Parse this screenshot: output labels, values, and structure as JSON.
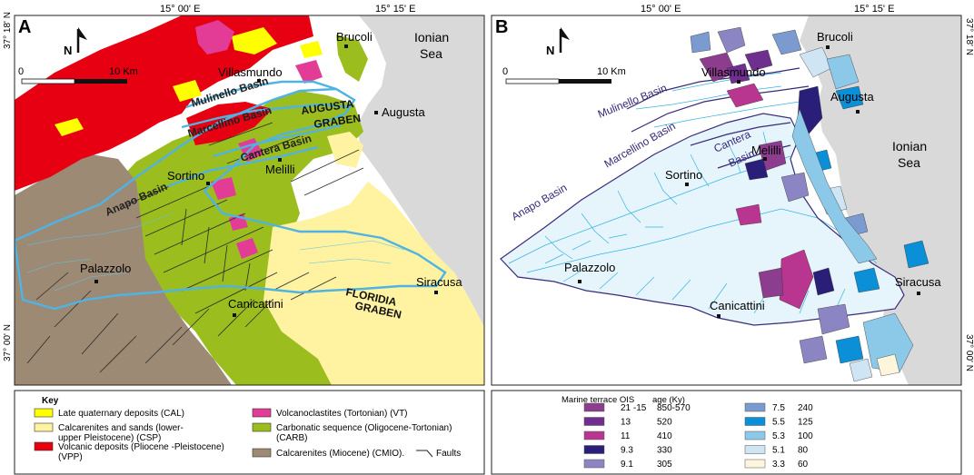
{
  "panel_a": {
    "letter": "A",
    "coord_top_left": "15° 00' E",
    "coord_top_right": "15° 15' E",
    "coord_left_top": "37° 18' N",
    "coord_left_bottom": "37° 00' N",
    "north": "N",
    "scale_zero": "0",
    "scale_ten": "10 Km",
    "sea": [
      "Ionian",
      "Sea"
    ],
    "towns": {
      "brucoli": "Brucoli",
      "villasmundo": "Villasmundo",
      "augusta": "Augusta",
      "melilli": "Melilli",
      "sortino": "Sortino",
      "palazzolo": "Palazzolo",
      "canicattini": "Canicattini",
      "siracusa": "Siracusa"
    },
    "basins": {
      "mulinello": "Mulinello Basin",
      "marcellino": "Marcellino Basin",
      "cantera": "Cantera Basin",
      "anapo": "Anapo Basin"
    },
    "grabens": {
      "augusta": [
        "AUGUSTA",
        "GRABEN"
      ],
      "floridia": [
        "FLORIDIA",
        "GRABEN"
      ]
    }
  },
  "panel_b": {
    "letter": "B",
    "coord_top_left": "15° 00' E",
    "coord_top_right": "15° 15' E",
    "coord_right_top": "37° 18' N",
    "coord_right_bottom": "37° 00' N",
    "north": "N",
    "scale_zero": "0",
    "scale_ten": "10 Km",
    "sea": [
      "Ionian",
      "Sea"
    ],
    "towns": {
      "brucoli": "Brucoli",
      "villasmundo": "Villasmundo",
      "augusta": "Augusta",
      "melilli": "Melilli",
      "sortino": "Sortino",
      "palazzolo": "Palazzolo",
      "canicattini": "Canicattini",
      "siracusa": "Siracusa"
    },
    "basins": {
      "mulinello": "Mulinello Basin",
      "marcellino": "Marcellino Basin",
      "cantera": [
        "Cantera",
        "Basin"
      ],
      "anapo": "Anapo Basin"
    }
  },
  "key": {
    "title": "Key",
    "items": [
      {
        "label": [
          "Late quaternary deposits (CAL)"
        ],
        "color": "#ffff00"
      },
      {
        "label": [
          "Calcarenites and sands (lower-",
          "upper Pleistocene) (CSP)"
        ],
        "color": "#fff2a0"
      },
      {
        "label": [
          "Volcanic deposits (Pliocene -Pleistocene)",
          "(VPP)"
        ],
        "color": "#e60012"
      },
      {
        "label": [
          "Volcanoclastites (Tortonian) (VT)"
        ],
        "color": "#e23c96"
      },
      {
        "label": [
          "Carbonatic sequence (Oligocene-Tortonian)",
          "(CARB)"
        ],
        "color": "#9cbd1e"
      },
      {
        "label": [
          "Calcarenites (Miocene) (CMIO)."
        ],
        "color": "#9d8a74"
      }
    ],
    "faults_label": "Faults"
  },
  "terrace_legend": {
    "header_ois": "Marine terrace OIS",
    "header_age": "age (Ky)",
    "items": [
      {
        "ois": "21 -15",
        "age": "850-570",
        "color": "#8c3d8e"
      },
      {
        "ois": "13",
        "age": "520",
        "color": "#6e2f8f"
      },
      {
        "ois": "11",
        "age": "410",
        "color": "#b8368f"
      },
      {
        "ois": "9.3",
        "age": "330",
        "color": "#2a1f78"
      },
      {
        "ois": "9.1",
        "age": "305",
        "color": "#8b86c3"
      },
      {
        "ois": "7.5",
        "age": "240",
        "color": "#7b9ad0"
      },
      {
        "ois": "5.5",
        "age": "125",
        "color": "#0b8fd6"
      },
      {
        "ois": "5.3",
        "age": "100",
        "color": "#8cc8e8"
      },
      {
        "ois": "5.1",
        "age": "80",
        "color": "#cfe5f3"
      },
      {
        "ois": "3.3",
        "age": "60",
        "color": "#fdf6dc"
      }
    ]
  },
  "colors": {
    "sea": "#d9d9d9",
    "basin_outline_a": "#4fb3e3",
    "basin_outline_b": "#3a2a7a",
    "river": "#36b4e0",
    "fault": "#2b2b2b"
  }
}
